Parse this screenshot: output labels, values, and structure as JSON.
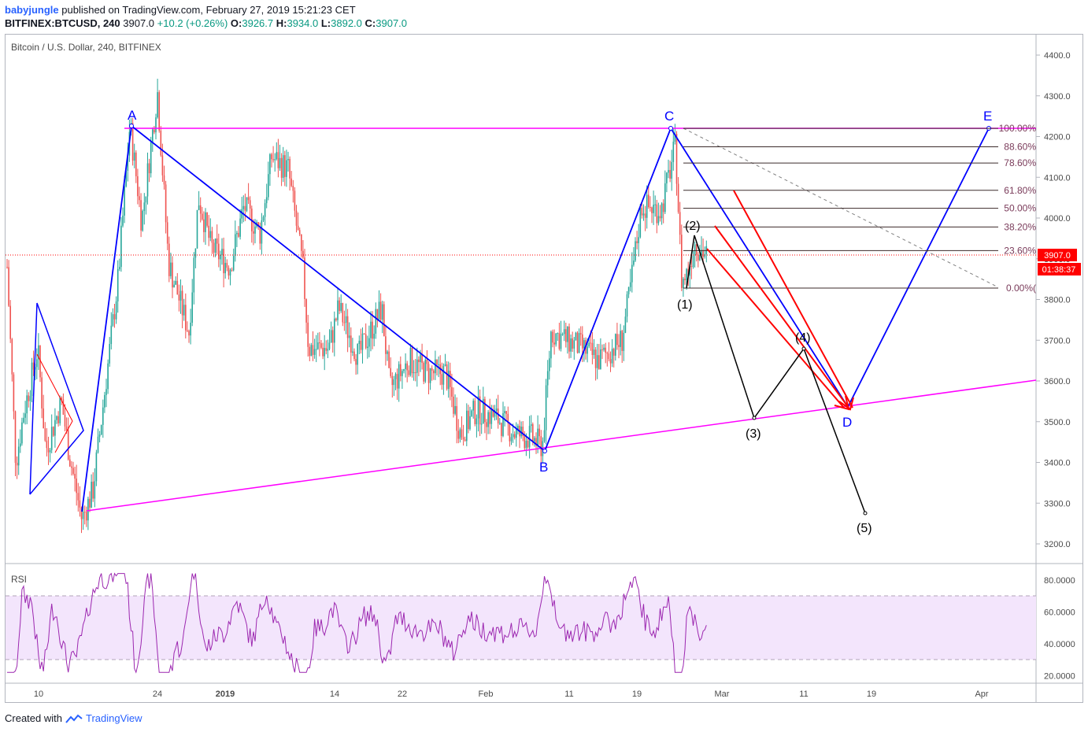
{
  "header": {
    "user": "babyjungle",
    "published_text": "published on TradingView.com, February 27, 2019 15:21:23 CET",
    "symbol": "BITFINEX:BTCUSD, 240",
    "last": "3907.0",
    "change": "+10.2 (+0.26%)",
    "o_label": "O:",
    "o": "3926.7",
    "h_label": "H:",
    "h": "3934.0",
    "l_label": "L:",
    "l": "3892.0",
    "c_label": "C:",
    "c": "3907.0"
  },
  "legend": "Bitcoin / U.S. Dollar, 240, BITFINEX",
  "price_axis": {
    "ticks": [
      "4400.0",
      "4300.0",
      "4200.0",
      "4100.0",
      "4000.0",
      "3900.0",
      "3800.0",
      "3700.0",
      "3600.0",
      "3500.0",
      "3400.0",
      "3300.0",
      "3200.0"
    ],
    "last_price_label": "3907.0",
    "countdown_label": "01:38:37",
    "last_price_color": "#ff0000"
  },
  "time_axis": {
    "ticks": [
      "10",
      "24",
      "2019",
      "14",
      "22",
      "Feb",
      "11",
      "19",
      "Mar",
      "11",
      "19",
      "Apr"
    ]
  },
  "rsi": {
    "label": "RSI",
    "ticks": [
      "80.0000",
      "60.0000",
      "40.0000",
      "20.0000"
    ],
    "band_color": "#f3e5fc",
    "line_color": "#9c27b0"
  },
  "fib_levels": [
    {
      "label": "100.00%",
      "price": 4220
    },
    {
      "label": "88.60%",
      "price": 4175
    },
    {
      "label": "78.60%",
      "price": 4135
    },
    {
      "label": "61.80%",
      "price": 4068
    },
    {
      "label": "50.00%",
      "price": 4024
    },
    {
      "label": "38.20%",
      "price": 3978
    },
    {
      "label": "23.60%",
      "price": 3920
    },
    {
      "label": "0.00%(",
      "price": 3828
    }
  ],
  "pattern_labels": {
    "A": "A",
    "B": "B",
    "C": "C",
    "D": "D",
    "E": "E"
  },
  "wave_labels": {
    "w1": "(1)",
    "w2": "(2)",
    "w3": "(3)",
    "w4": "(4)",
    "w5": "(5)"
  },
  "colors": {
    "up": "#26a69a",
    "down": "#ef5350",
    "pattern": "#0000ff",
    "trendline": "#ff00ff",
    "projection": "#ff0000",
    "wave": "#000000"
  },
  "footer": {
    "created_with": "Created with",
    "brand": "TradingView"
  }
}
